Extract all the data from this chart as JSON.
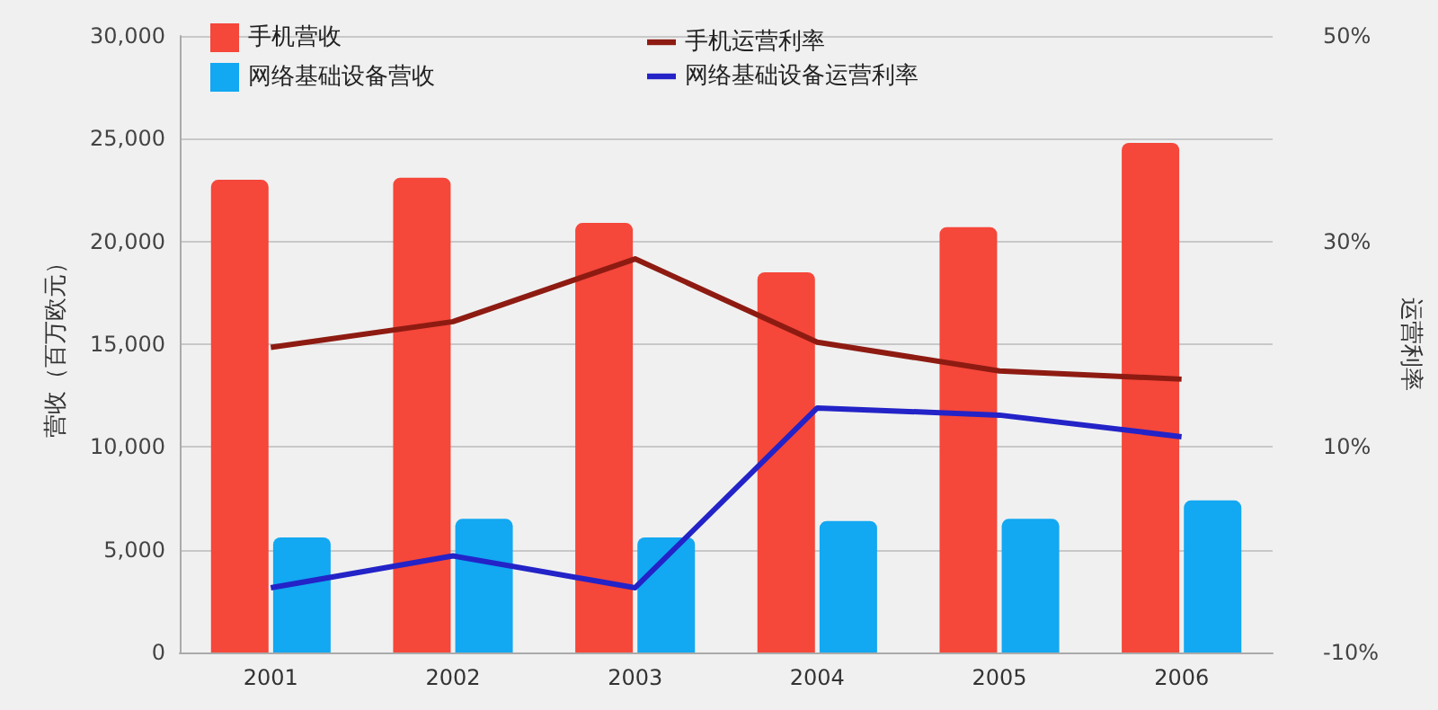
{
  "chart_data": {
    "type": "bar",
    "categories": [
      "2001",
      "2002",
      "2003",
      "2004",
      "2005",
      "2006"
    ],
    "ylabel": "营收（百万欧元）",
    "y2label": "运营利率",
    "series": [
      {
        "name": "手机营收",
        "color": "#f5473a",
        "values": [
          23000,
          23100,
          20900,
          18500,
          20700,
          24800
        ]
      },
      {
        "name": "网络基础设备营收",
        "color": "#12a8f2",
        "values": [
          5600,
          6500,
          5600,
          6400,
          6500,
          7400
        ]
      },
      {
        "name": "手机运营利率",
        "type": "line",
        "axis": "y2",
        "color": "#8e1b12",
        "values": [
          19.7,
          22.2,
          28.3,
          20.2,
          17.4,
          16.6
        ]
      },
      {
        "name": "网络基础设备运营利率",
        "type": "line",
        "axis": "y2",
        "color": "#2323c8",
        "values": [
          -3.7,
          -0.6,
          -3.7,
          13.8,
          13.1,
          11
        ]
      }
    ],
    "ylim": [
      0,
      30000
    ],
    "yticks": [
      {
        "value": 0,
        "label": "0"
      },
      {
        "value": 5000,
        "label": "5,000"
      },
      {
        "value": 10000,
        "label": "10,000"
      },
      {
        "value": 15000,
        "label": "15,000"
      },
      {
        "value": 20000,
        "label": "20,000"
      },
      {
        "value": 25000,
        "label": "25,000"
      },
      {
        "value": 30000,
        "label": "30,000"
      }
    ],
    "y2lim": [
      -10,
      50
    ],
    "y2ticks": [
      {
        "value": -10,
        "label": "-10%"
      },
      {
        "value": 10,
        "label": "10%"
      },
      {
        "value": 30,
        "label": "30%"
      },
      {
        "value": 50,
        "label": "50%"
      }
    ],
    "grid": "y",
    "legend": "top left",
    "marker": "none",
    "line_style": "solid"
  }
}
